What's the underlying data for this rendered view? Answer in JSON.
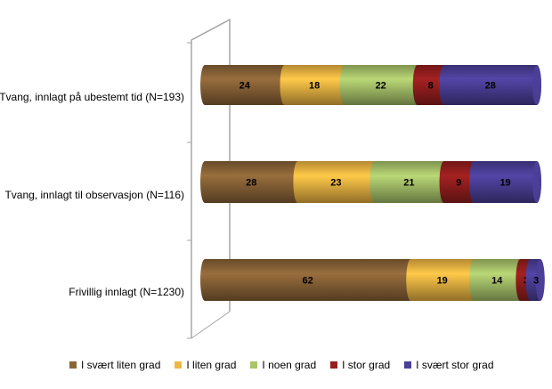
{
  "chart_data": {
    "type": "bar",
    "orientation": "horizontal",
    "stacked": "percent",
    "style": "3d-cylinder",
    "title": "",
    "xlabel": "",
    "ylabel": "",
    "xlim": [
      0,
      100
    ],
    "categories": [
      "Tvang, innlagt på ubestemt tid (N=193)",
      "Tvang, innlagt til observasjon (N=116)",
      "Frivillig innlagt (N=1230)"
    ],
    "series": [
      {
        "name": "I svært liten grad",
        "color": "#8b6437",
        "values": [
          24,
          28,
          62
        ]
      },
      {
        "name": "I liten grad",
        "color": "#f0b742",
        "values": [
          18,
          23,
          19
        ]
      },
      {
        "name": "I noen grad",
        "color": "#a9c46b",
        "values": [
          22,
          21,
          14
        ]
      },
      {
        "name": "I stor grad",
        "color": "#961e1e",
        "values": [
          8,
          9,
          3
        ]
      },
      {
        "name": "I svært stor grad",
        "color": "#4b3f98",
        "values": [
          28,
          19,
          3
        ]
      }
    ],
    "legend_position": "bottom",
    "grid": false
  }
}
